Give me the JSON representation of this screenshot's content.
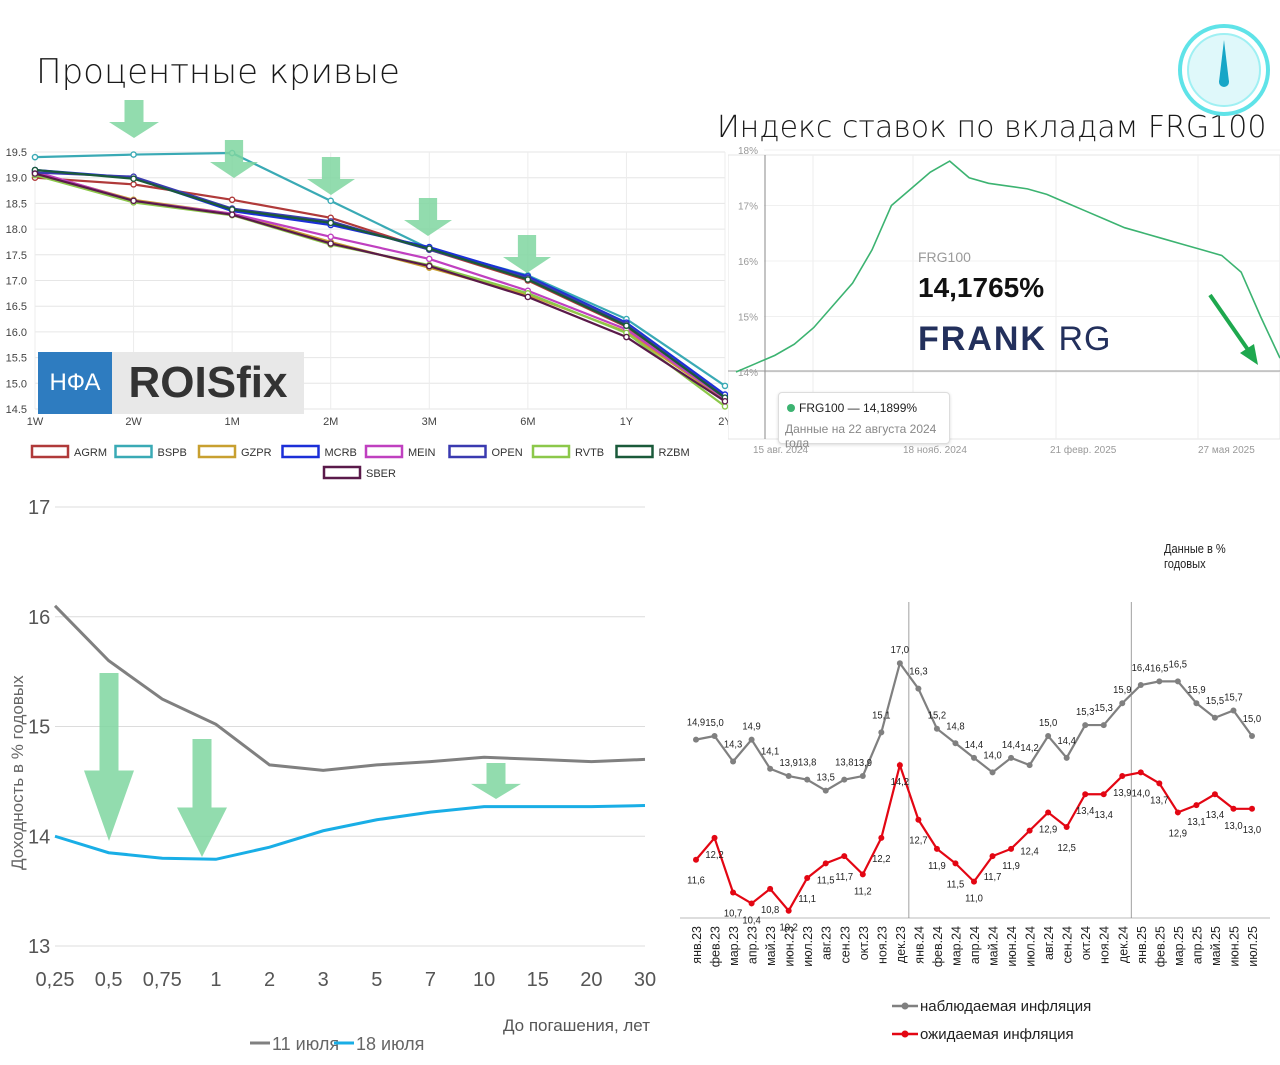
{
  "titles": {
    "curves": "Процентные кривые",
    "frg": "Индекс ставок по вкладам FRG100"
  },
  "colors": {
    "green_arrow": "#7fd6a0",
    "accent": "#3cb371"
  },
  "logos": {
    "nfa": "НФА",
    "rois": "ROISfix",
    "frank_bold": "FRANK",
    "frank_light": "RG"
  },
  "frg_panel": {
    "label": "FRG100",
    "value": "14,1765%",
    "tooltip_line": "FRG100 — 14,1899%",
    "tooltip_note": "Данные на 22 августа 2024 года",
    "compass_icon": "compass-icon"
  },
  "note_top_right": "Данные в % годовых",
  "chart_data": [
    {
      "id": "curves",
      "type": "line",
      "categories": [
        "1W",
        "2W",
        "1M",
        "2M",
        "3M",
        "6M",
        "1Y",
        "2Y"
      ],
      "yticks": [
        14.5,
        15.0,
        15.5,
        16.0,
        16.5,
        17.0,
        17.5,
        18.0,
        18.5,
        19.0,
        19.5
      ],
      "ylim": [
        14.5,
        19.5
      ],
      "series": [
        {
          "name": "AGRM",
          "color": "#b03a3a",
          "values": [
            19.0,
            18.87,
            18.57,
            18.22,
            17.6,
            17.0,
            16.1,
            14.75
          ]
        },
        {
          "name": "BSPB",
          "color": "#3aaab5",
          "values": [
            19.4,
            19.45,
            19.48,
            18.55,
            17.62,
            17.1,
            16.25,
            14.95
          ]
        },
        {
          "name": "GZPR",
          "color": "#c8a030",
          "values": [
            19.1,
            18.57,
            18.3,
            17.75,
            17.25,
            16.72,
            16.0,
            14.68
          ]
        },
        {
          "name": "MCRB",
          "color": "#1c2fd8",
          "values": [
            19.15,
            19.0,
            18.35,
            18.08,
            17.65,
            17.08,
            16.18,
            14.78
          ]
        },
        {
          "name": "MEIN",
          "color": "#c040c0",
          "values": [
            19.12,
            18.55,
            18.3,
            17.85,
            17.42,
            16.8,
            16.05,
            14.7
          ]
        },
        {
          "name": "OPEN",
          "color": "#3a3ab0",
          "values": [
            19.1,
            19.02,
            18.4,
            18.15,
            17.6,
            17.05,
            16.15,
            14.72
          ]
        },
        {
          "name": "RVTB",
          "color": "#8cc84a",
          "values": [
            19.05,
            18.52,
            18.27,
            17.7,
            17.3,
            16.75,
            15.98,
            14.55
          ]
        },
        {
          "name": "RZBM",
          "color": "#1a5a3a",
          "values": [
            19.15,
            18.98,
            18.38,
            18.12,
            17.62,
            17.02,
            16.12,
            14.72
          ]
        },
        {
          "name": "SBER",
          "color": "#5a1a4a",
          "values": [
            19.08,
            18.55,
            18.28,
            17.72,
            17.28,
            16.68,
            15.9,
            14.65
          ]
        }
      ]
    },
    {
      "id": "frg100",
      "type": "line",
      "yticks": [
        "14%",
        "15%",
        "16%",
        "17%",
        "18%"
      ],
      "ylim": [
        14,
        18
      ],
      "xticks": [
        "15 авг. 2024",
        "18 нояб. 2024",
        "21 февр. 2025",
        "27 мая 2025"
      ],
      "series": [
        {
          "name": "FRG100",
          "color": "#3cb371",
          "values": [
            14.0,
            14.15,
            14.3,
            14.5,
            14.8,
            15.2,
            15.6,
            16.2,
            17.0,
            17.3,
            17.6,
            17.8,
            17.5,
            17.4,
            17.35,
            17.3,
            17.2,
            17.05,
            16.9,
            16.75,
            16.6,
            16.5,
            16.4,
            16.3,
            16.2,
            16.1,
            15.8,
            15.0,
            14.25
          ]
        }
      ]
    },
    {
      "id": "ofz",
      "type": "line",
      "ylabel": "Доходность в % годовых",
      "xlabel": "До погашения, лет",
      "categories": [
        "0,25",
        "0,5",
        "0,75",
        "1",
        "2",
        "3",
        "5",
        "7",
        "10",
        "15",
        "20",
        "30"
      ],
      "yticks": [
        "13",
        "14",
        "15",
        "16",
        "17"
      ],
      "ylim": [
        13,
        17
      ],
      "series": [
        {
          "name": "11 июля",
          "color": "#808080",
          "values": [
            16.1,
            15.6,
            15.25,
            15.02,
            14.65,
            14.6,
            14.65,
            14.68,
            14.72,
            14.7,
            14.68,
            14.7
          ]
        },
        {
          "name": "18 июля",
          "color": "#19aee6",
          "values": [
            14.0,
            13.85,
            13.8,
            13.79,
            13.9,
            14.05,
            14.15,
            14.22,
            14.27,
            14.27,
            14.27,
            14.28
          ]
        }
      ]
    },
    {
      "id": "inflation",
      "type": "line",
      "categories": [
        "янв.23",
        "фев.23",
        "мар.23",
        "апр.23",
        "май.23",
        "июн.23",
        "июл.23",
        "авг.23",
        "сен.23",
        "окт.23",
        "ноя.23",
        "дек.23",
        "янв.24",
        "фев.24",
        "мар.24",
        "апр.24",
        "май.24",
        "июн.24",
        "июл.24",
        "авг.24",
        "сен.24",
        "окт.24",
        "ноя.24",
        "дек.24",
        "янв.25",
        "фев.25",
        "мар.25",
        "апр.25",
        "май.25",
        "июн.25",
        "июл.25"
      ],
      "series": [
        {
          "name": "наблюдаемая инфляция",
          "color": "#808080",
          "values": [
            14.9,
            15.0,
            14.3,
            14.9,
            14.1,
            13.9,
            13.8,
            13.5,
            13.8,
            13.9,
            15.1,
            17.0,
            16.3,
            15.2,
            14.8,
            14.4,
            14.0,
            14.4,
            14.2,
            15.0,
            14.4,
            15.3,
            15.3,
            15.9,
            16.4,
            16.5,
            16.5,
            15.9,
            15.5,
            15.7,
            15.0
          ],
          "labels": [
            "14,9",
            "15,0",
            "14,3",
            "14,9",
            "14,1",
            "13,9",
            "13,8",
            "13,5",
            "13,8",
            "13,9",
            "15,1",
            "17,0",
            "16,3",
            "15,2",
            "14,8",
            "14,4",
            "14,0",
            "14,4",
            "14,2",
            "15,0",
            "14,4",
            "15,3",
            "15,3",
            "15,9",
            "16,4",
            "16,5",
            "16,5",
            "15,9",
            "15,5",
            "15,7",
            "15,0"
          ]
        },
        {
          "name": "ожидаемая инфляция",
          "color": "#e30613",
          "values": [
            11.6,
            12.2,
            10.7,
            10.4,
            10.8,
            10.2,
            11.1,
            11.5,
            11.7,
            11.2,
            12.2,
            14.2,
            12.7,
            11.9,
            11.5,
            11.0,
            11.7,
            11.9,
            12.4,
            12.9,
            12.5,
            13.4,
            13.4,
            13.9,
            14.0,
            13.7,
            12.9,
            13.1,
            13.4,
            13.0,
            13.0
          ],
          "labels": [
            "11,6",
            "12,2",
            "10,7",
            "10,4",
            "10,8",
            "10,2",
            "11,1",
            "11,5",
            "11,7",
            "11,2",
            "12,2",
            "14,2",
            "12,7",
            "11,9",
            "11,5",
            "11,0",
            "11,7",
            "11,9",
            "12,4",
            "12,9",
            "12,5",
            "13,4",
            "13,4",
            "13,9",
            "14,0",
            "13,7",
            "12,9",
            "13,1",
            "13,4",
            "13,0",
            "13,0"
          ]
        }
      ]
    }
  ]
}
